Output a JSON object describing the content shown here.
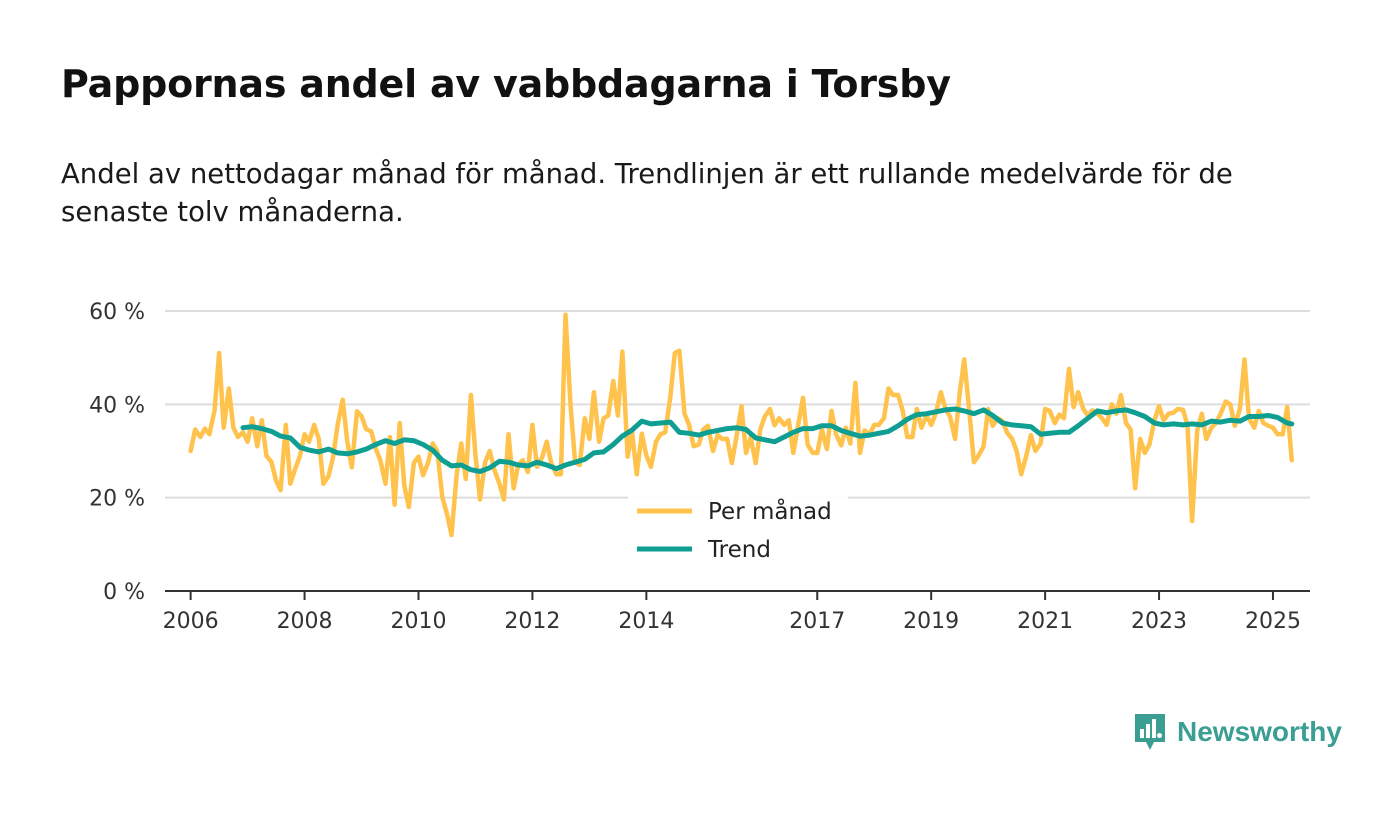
{
  "title": "Pappornas andel av vabbdagarna i Torsby",
  "subtitle": "Andel av nettodagar månad för månad. Trendlinjen är ett rullande medelvärde för de senaste tolv månaderna.",
  "brand": {
    "name": "Newsworthy",
    "color": "#3a9e93"
  },
  "colors": {
    "monthly": "#ffc34d",
    "trend": "#0e9e92",
    "grid": "#dddddd",
    "axis": "#333333"
  },
  "chart_data": {
    "type": "line",
    "title": "Pappornas andel av vabbdagarna i Torsby",
    "xlabel": "",
    "ylabel": "",
    "xlim": [
      2005.55,
      2025.65
    ],
    "ylim": [
      0,
      60
    ],
    "y_ticks": [
      0,
      20,
      40,
      60
    ],
    "y_tick_labels": [
      "0 %",
      "20 %",
      "40 %",
      "60 %"
    ],
    "x_ticks": [
      2006,
      2008,
      2010,
      2012,
      2014,
      2017,
      2019,
      2021,
      2023,
      2025
    ],
    "x_tick_labels": [
      "2006",
      "2008",
      "2010",
      "2012",
      "2014",
      "2017",
      "2019",
      "2021",
      "2023",
      "2025"
    ],
    "legend": {
      "position": "bottom-center",
      "entries": [
        "Per månad",
        "Trend"
      ]
    },
    "series": [
      {
        "name": "Per månad",
        "x": [
          2006.0,
          2006.08,
          2006.17,
          2006.25,
          2006.33,
          2006.42,
          2006.5,
          2006.58,
          2006.67,
          2006.75,
          2006.83,
          2006.92,
          2007.0,
          2007.08,
          2007.17,
          2007.25,
          2007.33,
          2007.42,
          2007.5,
          2007.58,
          2007.67,
          2007.75,
          2007.83,
          2007.92,
          2008.0,
          2008.08,
          2008.17,
          2008.25,
          2008.33,
          2008.42,
          2008.5,
          2008.58,
          2008.67,
          2008.75,
          2008.83,
          2008.92,
          2009.0,
          2009.08,
          2009.17,
          2009.25,
          2009.33,
          2009.42,
          2009.5,
          2009.58,
          2009.67,
          2009.75,
          2009.83,
          2009.92,
          2010.0,
          2010.08,
          2010.17,
          2010.25,
          2010.33,
          2010.42,
          2010.5,
          2010.58,
          2010.67,
          2010.75,
          2010.83,
          2010.92,
          2011.0,
          2011.08,
          2011.17,
          2011.25,
          2011.33,
          2011.42,
          2011.5,
          2011.58,
          2011.67,
          2011.75,
          2011.83,
          2011.92,
          2012.0,
          2012.08,
          2012.17,
          2012.25,
          2012.33,
          2012.42,
          2012.5,
          2012.58,
          2012.67,
          2012.75,
          2012.83,
          2012.92,
          2013.0,
          2013.08,
          2013.17,
          2013.25,
          2013.33,
          2013.42,
          2013.5,
          2013.58,
          2013.67,
          2013.75,
          2013.83,
          2013.92,
          2014.0,
          2014.08,
          2014.17,
          2014.25,
          2014.33,
          2014.42,
          2014.5,
          2014.58,
          2014.67,
          2014.75,
          2014.83,
          2014.92,
          2015.0,
          2015.08,
          2015.17,
          2015.25,
          2015.33,
          2015.42,
          2015.5,
          2015.58,
          2015.67,
          2015.75,
          2015.83,
          2015.92,
          2016.0,
          2016.08,
          2016.17,
          2016.25,
          2016.33,
          2016.42,
          2016.5,
          2016.58,
          2016.67,
          2016.75,
          2016.83,
          2016.92,
          2017.0,
          2017.08,
          2017.17,
          2017.25,
          2017.33,
          2017.42,
          2017.5,
          2017.58,
          2017.67,
          2017.75,
          2017.83,
          2017.92,
          2018.0,
          2018.08,
          2018.17,
          2018.25,
          2018.33,
          2018.42,
          2018.5,
          2018.58,
          2018.67,
          2018.75,
          2018.83,
          2018.92,
          2019.0,
          2019.08,
          2019.17,
          2019.25,
          2019.33,
          2019.42,
          2019.5,
          2019.58,
          2019.67,
          2019.75,
          2019.83,
          2019.92,
          2020.0,
          2020.08,
          2020.17,
          2020.25,
          2020.33,
          2020.42,
          2020.5,
          2020.58,
          2020.67,
          2020.75,
          2020.83,
          2020.92,
          2021.0,
          2021.08,
          2021.17,
          2021.25,
          2021.33,
          2021.42,
          2021.5,
          2021.58,
          2021.67,
          2021.75,
          2021.83,
          2021.92,
          2022.0,
          2022.08,
          2022.17,
          2022.25,
          2022.33,
          2022.42,
          2022.5,
          2022.58,
          2022.67,
          2022.75,
          2022.83,
          2022.92,
          2023.0,
          2023.08,
          2023.17,
          2023.25,
          2023.33,
          2023.42,
          2023.5,
          2023.58,
          2023.67,
          2023.75,
          2023.83,
          2023.92,
          2024.0,
          2024.08,
          2024.17,
          2024.25,
          2024.33,
          2024.42,
          2024.5,
          2024.58,
          2024.67,
          2024.75,
          2024.83,
          2024.92,
          2025.0,
          2025.08,
          2025.17,
          2025.25,
          2025.33
        ],
        "values": [
          30,
          34.6,
          33,
          34.8,
          33.6,
          38.7,
          51,
          35,
          43.4,
          35,
          33,
          34,
          32,
          37,
          31,
          36.6,
          29,
          27.6,
          23.6,
          21.6,
          35.6,
          23,
          26,
          29,
          33.6,
          32,
          35.6,
          32.6,
          23,
          24.6,
          28.6,
          35.6,
          41,
          32,
          26.5,
          38.5,
          37.5,
          34.7,
          34.2,
          30.5,
          28,
          23,
          33,
          18.5,
          36,
          22.6,
          18,
          27.5,
          28.8,
          24.8,
          27.6,
          31.6,
          30,
          20,
          16.5,
          12,
          25,
          31.6,
          24,
          42,
          29,
          19.6,
          27.6,
          30,
          26,
          23,
          19.6,
          33.6,
          22,
          27,
          28,
          25.5,
          35.6,
          26.6,
          28.6,
          32,
          27.4,
          25,
          25,
          59.2,
          39.6,
          27.6,
          27,
          37,
          32.6,
          42.6,
          32,
          37,
          37.6,
          45,
          37.6,
          51.3,
          28.8,
          34,
          25,
          33.7,
          29,
          26.6,
          32,
          33.6,
          34,
          41.5,
          51,
          51.5,
          38,
          35.6,
          31,
          31.4,
          34.6,
          35.4,
          30,
          33.4,
          32.6,
          32.6,
          27.4,
          33,
          39.6,
          29.6,
          33,
          27.4,
          34.6,
          37.4,
          39,
          35.5,
          37,
          35.6,
          36.6,
          29.6,
          36,
          41.4,
          31.4,
          29.6,
          29.6,
          34.6,
          30.4,
          38.6,
          33.6,
          31.2,
          35,
          31.6,
          44.6,
          29.6,
          34.4,
          33.6,
          35.6,
          35.6,
          37,
          43.4,
          42,
          42,
          38.6,
          33,
          33,
          39,
          35,
          37.6,
          35.6,
          38,
          42.6,
          39,
          37.4,
          32.6,
          42.4,
          49.6,
          38.6,
          27.6,
          29,
          31,
          39,
          35.4,
          37,
          36.4,
          34,
          32.6,
          30,
          25,
          29,
          33.4,
          30,
          31.6,
          39,
          38.6,
          36,
          37.8,
          37,
          47.6,
          39.4,
          42.6,
          39,
          37.6,
          38.7,
          38,
          37,
          35.6,
          40,
          38,
          42,
          36,
          34.6,
          22,
          32.6,
          29.6,
          31.4,
          36.6,
          39.6,
          36.6,
          38,
          38.2,
          39,
          38.8,
          35.5,
          15,
          34.4,
          38,
          32.6,
          35,
          36,
          38,
          40.6,
          40,
          35.4,
          39,
          49.6,
          37,
          35,
          38.6,
          36,
          35.4,
          35,
          33.6,
          33.6,
          39.4,
          28
        ]
      },
      {
        "name": "Trend",
        "x": [
          2006.92,
          2007.08,
          2007.25,
          2007.42,
          2007.58,
          2007.75,
          2007.92,
          2008.08,
          2008.25,
          2008.42,
          2008.58,
          2008.75,
          2008.92,
          2009.08,
          2009.25,
          2009.42,
          2009.58,
          2009.75,
          2009.92,
          2010.08,
          2010.25,
          2010.42,
          2010.58,
          2010.75,
          2010.92,
          2011.08,
          2011.25,
          2011.42,
          2011.58,
          2011.75,
          2011.92,
          2012.08,
          2012.25,
          2012.42,
          2012.58,
          2012.75,
          2012.92,
          2013.08,
          2013.25,
          2013.42,
          2013.58,
          2013.75,
          2013.92,
          2014.08,
          2014.25,
          2014.42,
          2014.58,
          2014.75,
          2014.92,
          2015.08,
          2015.25,
          2015.42,
          2015.58,
          2015.75,
          2015.92,
          2016.08,
          2016.25,
          2016.42,
          2016.58,
          2016.75,
          2016.92,
          2017.08,
          2017.25,
          2017.42,
          2017.58,
          2017.75,
          2017.92,
          2018.08,
          2018.25,
          2018.42,
          2018.58,
          2018.75,
          2018.92,
          2019.08,
          2019.25,
          2019.42,
          2019.58,
          2019.75,
          2019.92,
          2020.08,
          2020.25,
          2020.42,
          2020.58,
          2020.75,
          2020.92,
          2021.08,
          2021.25,
          2021.42,
          2021.58,
          2021.75,
          2021.92,
          2022.08,
          2022.25,
          2022.42,
          2022.58,
          2022.75,
          2022.92,
          2023.08,
          2023.25,
          2023.42,
          2023.58,
          2023.75,
          2023.92,
          2024.08,
          2024.25,
          2024.42,
          2024.58,
          2024.75,
          2024.92,
          2025.08,
          2025.25,
          2025.33
        ],
        "values": [
          35,
          35.2,
          34.8,
          34.2,
          33.2,
          32.8,
          30.8,
          30.2,
          29.8,
          30.4,
          29.6,
          29.4,
          29.8,
          30.4,
          31.4,
          32.2,
          31.6,
          32.4,
          32.2,
          31.4,
          30.2,
          28,
          26.8,
          27,
          26,
          25.6,
          26.4,
          27.8,
          27.6,
          27,
          26.8,
          27.6,
          27,
          26.2,
          27,
          27.6,
          28.2,
          29.6,
          29.8,
          31.4,
          33.2,
          34.5,
          36.4,
          35.8,
          36,
          36.2,
          34,
          33.8,
          33.4,
          34,
          34.4,
          34.8,
          35,
          34.6,
          32.8,
          32.4,
          32,
          33,
          34,
          34.8,
          34.8,
          35.4,
          35.4,
          34.4,
          33.8,
          33.2,
          33.4,
          33.8,
          34.2,
          35.4,
          36.8,
          37.8,
          38,
          38.4,
          38.8,
          39,
          38.6,
          38,
          38.8,
          37.6,
          36,
          35.6,
          35.4,
          35.2,
          33.6,
          33.8,
          34,
          34,
          35.4,
          37,
          38.6,
          38.2,
          38.6,
          38.8,
          38.2,
          37.4,
          36,
          35.6,
          35.8,
          35.6,
          35.8,
          35.6,
          36.4,
          36.2,
          36.6,
          36.4,
          37.4,
          37.4,
          37.6,
          37.2,
          36,
          35.8
        ]
      }
    ]
  }
}
